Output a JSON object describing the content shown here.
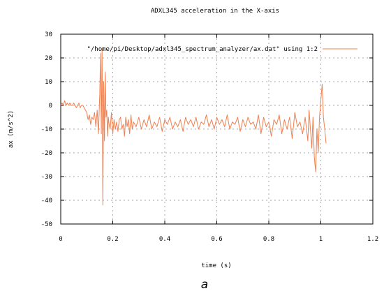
{
  "caption": "a",
  "chart_data": {
    "type": "line",
    "title": "ADXL345 acceleration in the X-axis",
    "xlabel": "time (s)",
    "ylabel": "ax (m/s^2)",
    "xlim": [
      0,
      1.2
    ],
    "ylim": [
      -50,
      30
    ],
    "xticks": [
      0,
      0.2,
      0.4,
      0.6,
      0.8,
      1,
      1.2
    ],
    "xtick_labels": [
      "0",
      "0.2",
      "0.4",
      "0.6",
      "0.8",
      "1",
      "1.2"
    ],
    "yticks": [
      -50,
      -40,
      -30,
      -20,
      -10,
      0,
      10,
      20,
      30
    ],
    "ytick_labels": [
      "-50",
      "-40",
      "-30",
      "-20",
      "-10",
      "0",
      "10",
      "20",
      "30"
    ],
    "grid": true,
    "legend_position": "top-right",
    "line_color": "#f08050",
    "series": [
      {
        "name": "\"/home/pi/Desktop/adxl345_spectrum_analyzer/ax.dat\" using 1:2",
        "x": [
          0.0,
          0.005,
          0.01,
          0.015,
          0.02,
          0.025,
          0.03,
          0.035,
          0.04,
          0.045,
          0.05,
          0.055,
          0.06,
          0.065,
          0.07,
          0.075,
          0.08,
          0.085,
          0.09,
          0.095,
          0.1,
          0.105,
          0.11,
          0.115,
          0.12,
          0.125,
          0.13,
          0.135,
          0.14,
          0.145,
          0.15,
          0.153,
          0.156,
          0.159,
          0.162,
          0.165,
          0.168,
          0.171,
          0.174,
          0.177,
          0.18,
          0.183,
          0.186,
          0.19,
          0.195,
          0.2,
          0.205,
          0.21,
          0.215,
          0.22,
          0.225,
          0.23,
          0.235,
          0.24,
          0.245,
          0.25,
          0.255,
          0.26,
          0.265,
          0.27,
          0.275,
          0.28,
          0.29,
          0.3,
          0.31,
          0.32,
          0.33,
          0.34,
          0.35,
          0.36,
          0.37,
          0.38,
          0.39,
          0.4,
          0.41,
          0.42,
          0.43,
          0.44,
          0.45,
          0.46,
          0.47,
          0.48,
          0.49,
          0.5,
          0.51,
          0.52,
          0.53,
          0.54,
          0.55,
          0.56,
          0.57,
          0.58,
          0.59,
          0.6,
          0.61,
          0.62,
          0.63,
          0.64,
          0.65,
          0.66,
          0.67,
          0.68,
          0.69,
          0.7,
          0.71,
          0.72,
          0.73,
          0.74,
          0.75,
          0.76,
          0.77,
          0.78,
          0.79,
          0.8,
          0.81,
          0.82,
          0.83,
          0.84,
          0.85,
          0.86,
          0.87,
          0.88,
          0.89,
          0.9,
          0.91,
          0.92,
          0.93,
          0.94,
          0.95,
          0.955,
          0.96,
          0.965,
          0.97,
          0.975,
          0.98,
          0.985,
          0.99,
          0.995,
          1.0,
          1.005,
          1.01,
          1.015,
          1.02
        ],
        "y": [
          0,
          1,
          0,
          2,
          0,
          1,
          0,
          1,
          0,
          0,
          1,
          0,
          -1,
          0,
          1,
          -1,
          0,
          0,
          -1,
          -2,
          -3,
          -6,
          -4,
          -8,
          -5,
          -6,
          -3,
          -9,
          -2,
          -12,
          5,
          22,
          -12,
          24,
          -42,
          10,
          -15,
          14,
          -5,
          -2,
          -13,
          -5,
          -8,
          -10,
          -3,
          -12,
          -6,
          -10,
          -7,
          -11,
          -6,
          -5,
          -10,
          -8,
          -13,
          -5,
          -9,
          -6,
          -12,
          -4,
          -10,
          -7,
          -9,
          -5,
          -10,
          -6,
          -9,
          -4,
          -10,
          -7,
          -9,
          -5,
          -11,
          -6,
          -8,
          -5,
          -10,
          -7,
          -9,
          -6,
          -11,
          -5,
          -8,
          -6,
          -9,
          -5,
          -10,
          -7,
          -8,
          -4,
          -9,
          -6,
          -10,
          -5,
          -8,
          -6,
          -9,
          -4,
          -10,
          -7,
          -8,
          -5,
          -11,
          -6,
          -9,
          -5,
          -8,
          -7,
          -10,
          -4,
          -12,
          -5,
          -9,
          -7,
          -13,
          -6,
          -8,
          -4,
          -12,
          -6,
          -10,
          -5,
          -14,
          -3,
          -9,
          -7,
          -12,
          -5,
          -15,
          -2,
          -10,
          -18,
          -5,
          -22,
          -28,
          -10,
          -20,
          -5,
          2,
          9,
          -5,
          -10,
          -16
        ]
      }
    ]
  }
}
